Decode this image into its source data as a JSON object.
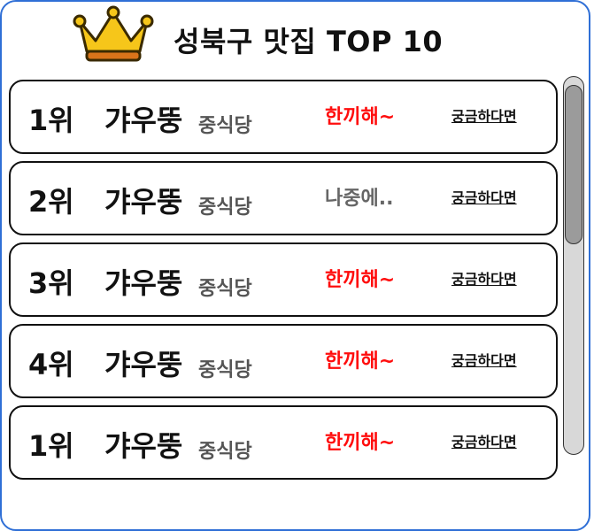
{
  "header": {
    "title": "성북구 맛집 TOP 10",
    "icon": "crown-icon"
  },
  "colors": {
    "frame": "#2f6fd6",
    "status_red": "#ff0d0d",
    "status_gray": "#666666",
    "crown": "#f6c61a"
  },
  "items": [
    {
      "rank": "1위",
      "name": "갸우뚱",
      "category": "중식당",
      "status": "한끼해~",
      "status_color": "red",
      "link": "궁금하다면"
    },
    {
      "rank": "2위",
      "name": "갸우뚱",
      "category": "중식당",
      "status": "나중에..",
      "status_color": "gray",
      "link": "궁금하다면"
    },
    {
      "rank": "3위",
      "name": "갸우뚱",
      "category": "중식당",
      "status": "한끼해~",
      "status_color": "red",
      "link": "궁금하다면"
    },
    {
      "rank": "4위",
      "name": "갸우뚱",
      "category": "중식당",
      "status": "한끼해~",
      "status_color": "red",
      "link": "궁금하다면"
    },
    {
      "rank": "1위",
      "name": "갸우뚱",
      "category": "중식당",
      "status": "한끼해~",
      "status_color": "red",
      "link": "궁금하다면"
    }
  ]
}
